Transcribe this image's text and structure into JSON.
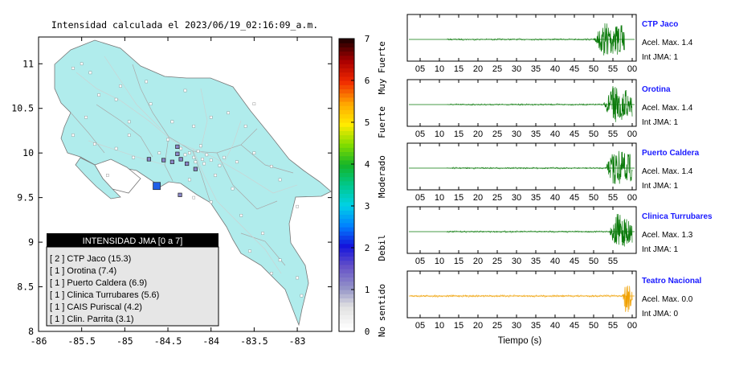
{
  "title": "Intensidad calculada el 2023/06/19_02:16:09_a.m.",
  "map": {
    "x_ticks": [
      "-86",
      "-85.5",
      "-85",
      "-84.5",
      "-84",
      "-83.5",
      "-83"
    ],
    "y_ticks": [
      "11",
      "10.5",
      "10",
      "9.5",
      "9",
      "8.5",
      "8"
    ],
    "xlim": [
      -86,
      -82.6
    ],
    "ylim": [
      8,
      11.3
    ],
    "land_color": "#b0ecec",
    "stations": [
      {
        "lon": -84.63,
        "lat": 9.63,
        "intensity": 2,
        "color": "#1f5fe6"
      },
      {
        "lon": -84.39,
        "lat": 10.07,
        "intensity": 1,
        "color": "#8a86c8"
      },
      {
        "lon": -84.72,
        "lat": 9.93,
        "intensity": 1,
        "color": "#8a86c8"
      },
      {
        "lon": -84.28,
        "lat": 9.88,
        "intensity": 1,
        "color": "#8a86c8"
      },
      {
        "lon": -84.55,
        "lat": 9.92,
        "intensity": 1,
        "color": "#8a86c8"
      },
      {
        "lon": -84.45,
        "lat": 9.9,
        "intensity": 1,
        "color": "#8a86c8"
      },
      {
        "lon": -84.36,
        "lat": 9.53,
        "intensity": 1,
        "color": "#8a86c8"
      },
      {
        "lon": -84.18,
        "lat": 9.82,
        "intensity": 1,
        "color": "#8a86c8"
      },
      {
        "lon": -84.39,
        "lat": 9.99,
        "intensity": 1,
        "color": "#8a86c8"
      },
      {
        "lon": -84.35,
        "lat": 9.93,
        "intensity": 1,
        "color": "#8a86c8"
      }
    ]
  },
  "legend": {
    "header": "INTENSIDAD JMA [0 a 7]",
    "items": [
      "[ 2 ]  CTP Jaco (15.3)",
      "[ 1 ]  Orotina (7.4)",
      "[ 1 ]  Puerto Caldera (6.9)",
      "[ 1 ]  Clinica Turrubares (5.6)",
      "[ 1 ]  CAIS Puriscal (4.2)",
      "[ 1 ]  Clin. Parrita (3.1)"
    ]
  },
  "colorbar": {
    "ticks": [
      "0",
      "1",
      "2",
      "3",
      "4",
      "5",
      "6",
      "7"
    ],
    "labels": [
      "No sentido",
      "Debil",
      "Moderado",
      "Fuerte",
      "Muy Fuerte"
    ]
  },
  "waveforms": {
    "xlabel": "Tiempo (s)",
    "x_ticks": [
      "05",
      "10",
      "15",
      "20",
      "25",
      "30",
      "35",
      "40",
      "45",
      "50",
      "55",
      "00"
    ],
    "x_ticks_short": [
      "05",
      "10",
      "15",
      "20",
      "25",
      "30",
      "35",
      "40",
      "45",
      "50",
      "55"
    ],
    "panels": [
      {
        "name": "CTP Jaco",
        "accel": "Acel. Max. 1.4",
        "jma": "Int JMA: 1",
        "color": "#0a7a0a",
        "onset": 50,
        "end": 58,
        "ticks": "x_ticks"
      },
      {
        "name": "Orotina",
        "accel": "Acel. Max. 1.4",
        "jma": "Int JMA: 1",
        "color": "#0a7a0a",
        "onset": 52.5,
        "end": 60,
        "ticks": "x_ticks"
      },
      {
        "name": "Puerto Caldera",
        "accel": "Acel. Max. 1.4",
        "jma": "Int JMA: 1",
        "color": "#0a7a0a",
        "onset": 53,
        "end": 60,
        "ticks": "x_ticks"
      },
      {
        "name": "Clinica Turrubares",
        "accel": "Acel. Max. 1.3",
        "jma": "Int JMA: 1",
        "color": "#0a7a0a",
        "onset": 54,
        "end": 60,
        "ticks": "x_ticks_short"
      },
      {
        "name": "Teatro Nacional",
        "accel": "Acel. Max. 0.0",
        "jma": "Int JMA: 0",
        "color": "#f0a000",
        "onset": 57.5,
        "end": 60,
        "ticks": "x_ticks"
      }
    ]
  },
  "chart_data": {
    "type": "scatter",
    "title": "Intensidad calculada el 2023/06/19_02:16:09_a.m.",
    "xlim": [
      -86,
      -82.6
    ],
    "ylim": [
      8,
      11.3
    ],
    "series": [
      {
        "name": "CTP Jaco",
        "intensity": 2,
        "value": 15.3
      },
      {
        "name": "Orotina",
        "intensity": 1,
        "value": 7.4
      },
      {
        "name": "Puerto Caldera",
        "intensity": 1,
        "value": 6.9
      },
      {
        "name": "Clinica Turrubares",
        "intensity": 1,
        "value": 5.6
      },
      {
        "name": "CAIS Puriscal",
        "intensity": 1,
        "value": 4.2
      },
      {
        "name": "Clin. Parrita",
        "intensity": 1,
        "value": 3.1
      }
    ]
  }
}
